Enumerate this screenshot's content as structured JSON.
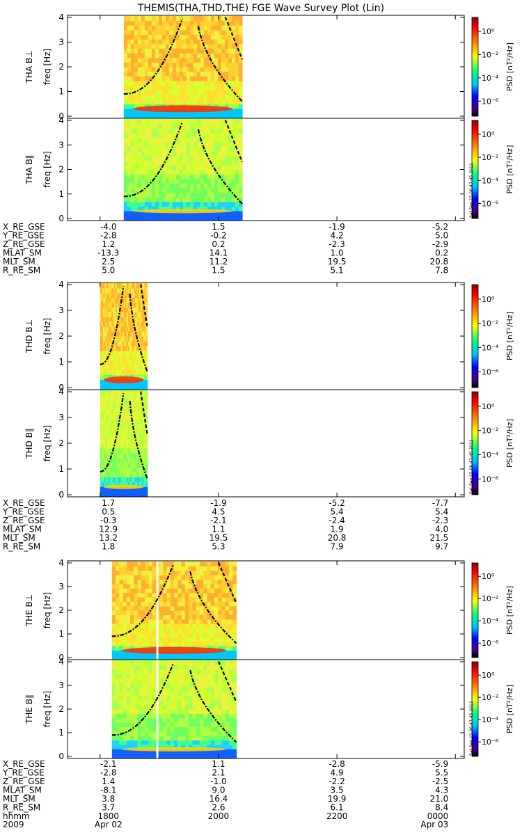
{
  "title": "THEMIS(THA,THD,THE) FGE Wave Survey Plot (Lin)",
  "colorbar": {
    "label": "PSD [nT²/Hz]",
    "ticks": [
      "10⁰",
      "10⁻²",
      "10⁻⁴",
      "10⁻⁶"
    ],
    "tick_exponents": [
      0,
      -2,
      -4,
      -6
    ],
    "colors": [
      "#000000",
      "#4b0082",
      "#0000ff",
      "#00bfff",
      "#00ff80",
      "#ffff00",
      "#ff8000",
      "#ff0000",
      "#8b0000"
    ]
  },
  "timestamp": "Sat Sep 15 06:47:45 2012",
  "y_axis": {
    "label": "freq [Hz]",
    "ticks": [
      "0",
      "1",
      "2",
      "3",
      "4"
    ],
    "range": [
      0,
      4
    ]
  },
  "time_axis": {
    "row_label": "hhmm",
    "ticks": [
      "1800",
      "2000",
      "2200",
      "0000"
    ],
    "year": "2009",
    "date_start": "Apr 02",
    "date_end": "Apr 03"
  },
  "chart_data": [
    {
      "type": "heatmap",
      "probe": "THA",
      "panels": [
        {
          "ylabel": "THA B⊥",
          "component": "perp"
        },
        {
          "ylabel": "THA B∥",
          "component": "par"
        }
      ],
      "data_coverage_hours": [
        18.4,
        20.4
      ],
      "ephemeris": [
        {
          "label": "X_RE_GSE",
          "values": [
            "-4.0",
            "1.5",
            "-1.9",
            "-5.2"
          ]
        },
        {
          "label": "Y_RE_GSE",
          "values": [
            "-2.8",
            "-0.2",
            "4.2",
            "5.0"
          ]
        },
        {
          "label": "Z_RE_GSE",
          "values": [
            "1.2",
            "0.2",
            "-2.3",
            "-2.9"
          ]
        },
        {
          "label": "MLAT_SM",
          "values": [
            "-13.3",
            "14.1",
            "1.0",
            "0.2"
          ]
        },
        {
          "label": "MLT_SM",
          "values": [
            "2.5",
            "11.2",
            "19.5",
            "20.8"
          ]
        },
        {
          "label": "R_RE_SM",
          "values": [
            "5.0",
            "1.5",
            "5.1",
            "7.8"
          ]
        }
      ]
    },
    {
      "type": "heatmap",
      "probe": "THD",
      "panels": [
        {
          "ylabel": "THD B⊥",
          "component": "perp"
        },
        {
          "ylabel": "THD B∥",
          "component": "par"
        }
      ],
      "data_coverage_hours": [
        18.0,
        18.8
      ],
      "ephemeris": [
        {
          "label": "X_RE_GSE",
          "values": [
            "1.7",
            "-1.9",
            "-5.2",
            "-7.7"
          ]
        },
        {
          "label": "Y_RE_GSE",
          "values": [
            "0.5",
            "4.5",
            "5.4",
            "5.4"
          ]
        },
        {
          "label": "Z_RE_GSE",
          "values": [
            "-0.3",
            "-2.1",
            "-2.4",
            "-2.3"
          ]
        },
        {
          "label": "MLAT_SM",
          "values": [
            "12.9",
            "1.1",
            "1.9",
            "4.0"
          ]
        },
        {
          "label": "MLT_SM",
          "values": [
            "13.2",
            "19.5",
            "20.8",
            "21.5"
          ]
        },
        {
          "label": "R_RE_SM",
          "values": [
            "1.8",
            "5.3",
            "7.9",
            "9.7"
          ]
        }
      ]
    },
    {
      "type": "heatmap",
      "probe": "THE",
      "panels": [
        {
          "ylabel": "THE B⊥",
          "component": "perp"
        },
        {
          "ylabel": "THE B∥",
          "component": "par"
        }
      ],
      "data_coverage_hours": [
        18.2,
        20.3
      ],
      "ephemeris": [
        {
          "label": "X_RE_GSE",
          "values": [
            "-2.1",
            "1.1",
            "-2.8",
            "-5.9"
          ]
        },
        {
          "label": "Y_RE_GSE",
          "values": [
            "-2.8",
            "2.1",
            "4.9",
            "5.5"
          ]
        },
        {
          "label": "Z_RE_GSE",
          "values": [
            "1.4",
            "-1.0",
            "-2.2",
            "-2.5"
          ]
        },
        {
          "label": "MLAT_SM",
          "values": [
            "-8.1",
            "9.0",
            "3.5",
            "4.3"
          ]
        },
        {
          "label": "MLT_SM",
          "values": [
            "3.8",
            "16.4",
            "19.9",
            "21.0"
          ]
        },
        {
          "label": "R_RE_SM",
          "values": [
            "3.7",
            "2.6",
            "6.1",
            "8.4"
          ]
        }
      ]
    }
  ]
}
